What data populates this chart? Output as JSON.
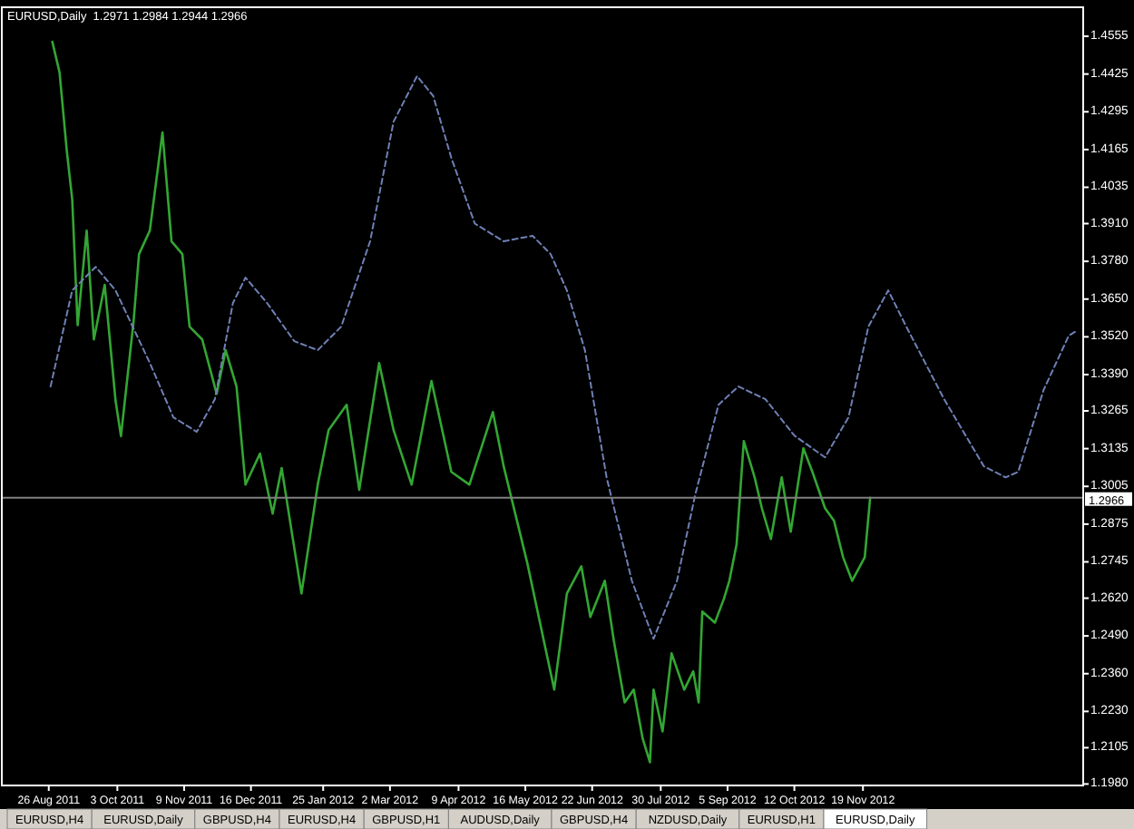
{
  "chart_data": {
    "type": "line",
    "title": "EURUSD,Daily  1.2971 1.2984 1.2944 1.2966",
    "xlim": [
      "2011-07-31",
      "2013-03-21"
    ],
    "ylim": [
      1.1975,
      1.4655
    ],
    "xticks": [
      {
        "value": "2011-08-26",
        "label": "26 Aug 2011"
      },
      {
        "value": "2011-10-03",
        "label": "3 Oct 2011"
      },
      {
        "value": "2011-11-09",
        "label": "9 Nov 2011"
      },
      {
        "value": "2011-12-16",
        "label": "16 Dec 2011"
      },
      {
        "value": "2012-01-25",
        "label": "25 Jan 2012"
      },
      {
        "value": "2012-03-02",
        "label": "2 Mar 2012"
      },
      {
        "value": "2012-04-09",
        "label": "9 Apr 2012"
      },
      {
        "value": "2012-05-16",
        "label": "16 May 2012"
      },
      {
        "value": "2012-06-22",
        "label": "22 Jun 2012"
      },
      {
        "value": "2012-07-30",
        "label": "30 Jul 2012"
      },
      {
        "value": "2012-09-05",
        "label": "5 Sep 2012"
      },
      {
        "value": "2012-10-12",
        "label": "12 Oct 2012"
      },
      {
        "value": "2012-11-19",
        "label": "19 Nov 2012"
      }
    ],
    "yticks": [
      1.4555,
      1.4425,
      1.4295,
      1.4165,
      1.4035,
      {
        "value": 1.391,
        "label": "1.3910"
      },
      {
        "value": 1.378,
        "label": "1.3780"
      },
      {
        "value": 1.365,
        "label": "1.3650"
      },
      {
        "value": 1.352,
        "label": "1.3520"
      },
      {
        "value": 1.339,
        "label": "1.3390"
      },
      1.3265,
      1.3135,
      1.3005,
      1.2875,
      1.2745,
      {
        "value": 1.262,
        "label": "1.2620"
      },
      {
        "value": 1.249,
        "label": "1.2490"
      },
      {
        "value": 1.236,
        "label": "1.2360"
      },
      {
        "value": 1.223,
        "label": "1.2230"
      },
      1.2105,
      {
        "value": 1.198,
        "label": "1.1980"
      }
    ],
    "ref_lines": [
      {
        "axis": "y",
        "value": 1.2966,
        "label": "1.2966",
        "color": "#808080"
      }
    ],
    "marker": "none",
    "series": [
      {
        "color": "#33a633",
        "line_style": "solid",
        "x": [
          "2011-08-28",
          "2011-09-01",
          "2011-09-05",
          "2011-09-08",
          "2011-09-11",
          "2011-09-16",
          "2011-09-20",
          "2011-09-26",
          "2011-10-02",
          "2011-10-05",
          "2011-10-12",
          "2011-10-15",
          "2011-10-21",
          "2011-10-28",
          "2011-11-02",
          "2011-11-08",
          "2011-11-12",
          "2011-11-19",
          "2011-11-27",
          "2011-12-02",
          "2011-12-08",
          "2011-12-13",
          "2011-12-21",
          "2011-12-28",
          "2012-01-02",
          "2012-01-13",
          "2012-01-22",
          "2012-01-28",
          "2012-02-07",
          "2012-02-14",
          "2012-02-25",
          "2012-03-04",
          "2012-03-14",
          "2012-03-25",
          "2012-04-05",
          "2012-04-15",
          "2012-04-28",
          "2012-05-04",
          "2012-05-17",
          "2012-06-01",
          "2012-06-08",
          "2012-06-16",
          "2012-06-21",
          "2012-06-29",
          "2012-07-04",
          "2012-07-10",
          "2012-07-15",
          "2012-07-20",
          "2012-07-24",
          "2012-07-26",
          "2012-07-31",
          "2012-08-05",
          "2012-08-12",
          "2012-08-17",
          "2012-08-20",
          "2012-08-22",
          "2012-08-29",
          "2012-09-03",
          "2012-09-06",
          "2012-09-10",
          "2012-09-14",
          "2012-09-20",
          "2012-09-24",
          "2012-09-29",
          "2012-10-05",
          "2012-10-10",
          "2012-10-17",
          "2012-10-22",
          "2012-10-29",
          "2012-11-03",
          "2012-11-08",
          "2012-11-13",
          "2012-11-20",
          "2012-11-23"
        ],
        "values": [
          1.4536,
          1.443,
          1.416,
          1.3993,
          1.356,
          1.3886,
          1.3511,
          1.3699,
          1.33,
          1.3178,
          1.3574,
          1.3805,
          1.3886,
          1.4224,
          1.3849,
          1.3805,
          1.3555,
          1.3511,
          1.3324,
          1.3474,
          1.3349,
          1.3011,
          1.3118,
          1.2911,
          1.3068,
          1.2636,
          1.3011,
          1.3199,
          1.3286,
          1.2993,
          1.343,
          1.3199,
          1.3011,
          1.3368,
          1.3055,
          1.3011,
          1.3261,
          1.3074,
          1.2743,
          1.2305,
          1.2636,
          1.273,
          1.2555,
          1.268,
          1.2474,
          1.2261,
          1.2305,
          1.2136,
          1.2055,
          1.2305,
          1.2161,
          1.243,
          1.2305,
          1.2368,
          1.2261,
          1.2574,
          1.2536,
          1.2618,
          1.268,
          1.2805,
          1.3161,
          1.3036,
          1.293,
          1.2824,
          1.3036,
          1.2849,
          1.3136,
          1.3055,
          1.293,
          1.2886,
          1.2761,
          1.268,
          1.2761,
          1.2966
        ]
      },
      {
        "color": "#6f80b5",
        "line_style": "dashed",
        "x": [
          "2011-08-27",
          "2011-09-08",
          "2011-09-21",
          "2011-10-02",
          "2011-10-21",
          "2011-11-03",
          "2011-11-16",
          "2011-11-26",
          "2011-12-06",
          "2011-12-13",
          "2011-12-25",
          "2012-01-09",
          "2012-01-22",
          "2012-02-04",
          "2012-02-20",
          "2012-03-04",
          "2012-03-17",
          "2012-03-26",
          "2012-04-05",
          "2012-04-18",
          "2012-05-04",
          "2012-05-20",
          "2012-05-30",
          "2012-06-08",
          "2012-06-18",
          "2012-06-30",
          "2012-07-14",
          "2012-07-26",
          "2012-08-08",
          "2012-08-18",
          "2012-08-31",
          "2012-09-11",
          "2012-09-26",
          "2012-10-12",
          "2012-10-29",
          "2012-11-11",
          "2012-11-22",
          "2012-12-03",
          "2012-12-13",
          "2013-01-03",
          "2013-01-25",
          "2013-02-06",
          "2013-02-13",
          "2013-02-27",
          "2013-03-13",
          "2013-03-18"
        ],
        "values": [
          1.3349,
          1.368,
          1.3761,
          1.368,
          1.343,
          1.3243,
          1.3193,
          1.3305,
          1.3636,
          1.3724,
          1.3636,
          1.3505,
          1.3474,
          1.3555,
          1.3849,
          1.4261,
          1.4418,
          1.4349,
          1.4136,
          1.391,
          1.3849,
          1.3868,
          1.3805,
          1.368,
          1.3474,
          1.3036,
          1.268,
          1.248,
          1.268,
          1.2974,
          1.3286,
          1.3349,
          1.3305,
          1.318,
          1.3105,
          1.3243,
          1.3555,
          1.368,
          1.3555,
          1.3305,
          1.3074,
          1.3036,
          1.3055,
          1.3336,
          1.3524,
          1.3543
        ]
      }
    ],
    "annotations": [
      "EURUSD,H4",
      "EURUSD,Daily",
      "GBPUSD,H4",
      "EURUSD,H4",
      "GBPUSD,H1",
      "AUDUSD,Daily",
      "GBPUSD,H4",
      "NZDUSD,Daily",
      "EURUSD,H1",
      "EURUSD,Daily"
    ]
  }
}
